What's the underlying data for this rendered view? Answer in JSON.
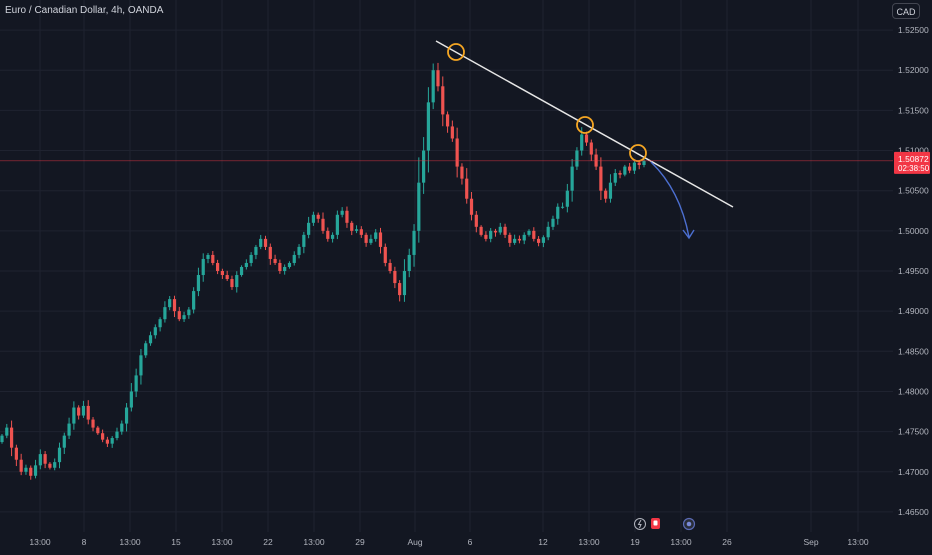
{
  "header": {
    "title": "Euro / Canadian Dollar, 4h, OANDA",
    "currency": "CAD"
  },
  "price_tag": {
    "value": "1.50872",
    "countdown": "02:38:50"
  },
  "chart_data": {
    "type": "candlestick",
    "title": "Euro / Canadian Dollar, 4h, OANDA",
    "ylim": [
      1.4625,
      1.5275
    ],
    "y_ticks": [
      "1.52500",
      "1.52000",
      "1.51500",
      "1.51000",
      "1.50500",
      "1.50000",
      "1.49500",
      "1.49000",
      "1.48500",
      "1.48000",
      "1.47500",
      "1.47000",
      "1.46500"
    ],
    "x_ticks": [
      "13:00",
      "8",
      "13:00",
      "15",
      "13:00",
      "22",
      "13:00",
      "29",
      "Aug",
      "6",
      "12",
      "13:00",
      "19",
      "13:00",
      "26",
      "Sep",
      "13:00"
    ],
    "last_price": 1.50872,
    "closes": [
      1.4745,
      1.4755,
      1.473,
      1.4715,
      1.47,
      1.4705,
      1.4695,
      1.4708,
      1.4722,
      1.471,
      1.4705,
      1.4712,
      1.473,
      1.4745,
      1.476,
      1.478,
      1.477,
      1.4782,
      1.4765,
      1.4755,
      1.4748,
      1.474,
      1.4735,
      1.4742,
      1.475,
      1.476,
      1.478,
      1.48,
      1.482,
      1.4845,
      1.486,
      1.487,
      1.488,
      1.489,
      1.4905,
      1.4915,
      1.49,
      1.489,
      1.4895,
      1.4902,
      1.4925,
      1.4945,
      1.4965,
      1.497,
      1.496,
      1.495,
      1.4945,
      1.494,
      1.493,
      1.4945,
      1.4955,
      1.496,
      1.497,
      1.498,
      1.499,
      1.498,
      1.4965,
      1.496,
      1.495,
      1.4955,
      1.496,
      1.497,
      1.498,
      1.4995,
      1.501,
      1.502,
      1.5015,
      1.5,
      1.499,
      1.4995,
      1.502,
      1.5025,
      1.501,
      1.5,
      1.5002,
      1.4995,
      1.4985,
      1.499,
      1.4998,
      1.498,
      1.496,
      1.495,
      1.4935,
      1.492,
      1.495,
      1.497,
      1.5,
      1.506,
      1.51,
      1.516,
      1.52,
      1.518,
      1.5145,
      1.513,
      1.5115,
      1.508,
      1.5065,
      1.504,
      1.502,
      1.5005,
      1.4995,
      1.499,
      1.5,
      1.4998,
      1.5005,
      1.4995,
      1.4985,
      1.499,
      1.4988,
      1.4995,
      1.5,
      1.499,
      1.4985,
      1.4992,
      1.5005,
      1.5015,
      1.503,
      1.503,
      1.505,
      1.508,
      1.51,
      1.512,
      1.511,
      1.5095,
      1.508,
      1.505,
      1.504,
      1.506,
      1.5072,
      1.507,
      1.508,
      1.5075,
      1.5085,
      1.5082,
      1.5087
    ]
  }
}
